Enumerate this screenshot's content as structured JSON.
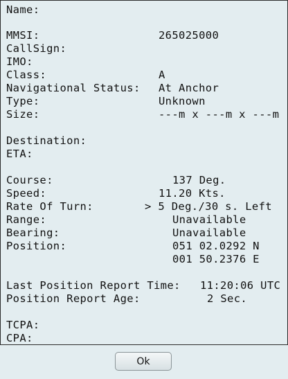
{
  "vessel": {
    "name_label": "Name:",
    "name_value": "",
    "mmsi_label": "MMSI:",
    "mmsi_value": "265025000",
    "callsign_label": "CallSign:",
    "callsign_value": "",
    "imo_label": "IMO:",
    "imo_value": "",
    "class_label": "Class:",
    "class_value": "A",
    "nav_status_label": "Navigational Status:",
    "nav_status_value": "At Anchor",
    "type_label": "Type:",
    "type_value": "Unknown",
    "size_label": "Size:",
    "size_value": "---m x ---m x ---m"
  },
  "voyage": {
    "destination_label": "Destination:",
    "destination_value": "",
    "eta_label": "ETA:",
    "eta_value": ""
  },
  "motion": {
    "course_label": "Course:",
    "course_value": "137 Deg.",
    "speed_label": "Speed:",
    "speed_value": "11.20 Kts.",
    "rot_label": "Rate Of Turn:",
    "rot_value": "> 5 Deg./30 s. Left",
    "range_label": "Range:",
    "range_value": "Unavailable",
    "bearing_label": "Bearing:",
    "bearing_value": "Unavailable",
    "position_label": "Position:",
    "position_lat": "051 02.0292 N",
    "position_lon": "001 50.2376 E"
  },
  "report": {
    "last_time_label": "Last Position Report Time:",
    "last_time_value": "11:20:06 UTC",
    "age_label": "Position Report Age:",
    "age_value": "2 Sec."
  },
  "cpa": {
    "tcpa_label": "TCPA:",
    "tcpa_value": "",
    "cpa_label": "CPA:",
    "cpa_value": ""
  },
  "footer": {
    "ok_label": "Ok"
  }
}
